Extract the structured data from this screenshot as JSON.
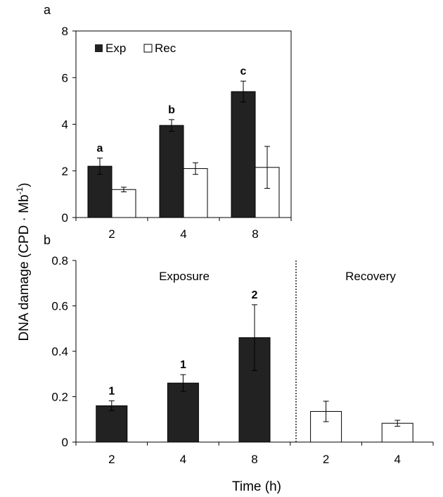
{
  "ylabel": "DNA damage (CPD · Mb",
  "ylabel_sup": "-1",
  "ylabel_close": ")",
  "xlabel": "Time (h)",
  "colors": {
    "exp": "#222222",
    "rec": "#ffffff",
    "stroke": "#000000"
  },
  "chart_data": [
    {
      "panel": "a",
      "type": "bar",
      "categories": [
        "2",
        "4",
        "8"
      ],
      "series": [
        {
          "name": "Exp",
          "values": [
            2.2,
            3.95,
            5.4
          ],
          "errors": [
            0.35,
            0.25,
            0.45
          ],
          "labels": [
            "a",
            "b",
            "c"
          ]
        },
        {
          "name": "Rec",
          "values": [
            1.2,
            2.1,
            2.15
          ],
          "errors": [
            0.1,
            0.25,
            0.9
          ],
          "labels": [
            "",
            "",
            ""
          ]
        }
      ],
      "ylim": [
        0,
        8
      ],
      "yticks": [
        "0",
        "2",
        "4",
        "6",
        "8"
      ],
      "legend": "top-left"
    },
    {
      "panel": "b",
      "type": "bar",
      "sections": [
        "Exposure",
        "Recovery"
      ],
      "categories": [
        "2",
        "4",
        "8",
        "2",
        "4"
      ],
      "groups": [
        "Exposure",
        "Exposure",
        "Exposure",
        "Recovery",
        "Recovery"
      ],
      "values": [
        0.16,
        0.26,
        0.46,
        0.135,
        0.083
      ],
      "errors": [
        0.022,
        0.037,
        0.145,
        0.045,
        0.013
      ],
      "labels": [
        "1",
        "1",
        "2",
        "",
        ""
      ],
      "ylim": [
        0,
        0.8
      ],
      "yticks": [
        "0",
        "0.2",
        "0.4",
        "0.6",
        "0.8"
      ]
    }
  ]
}
